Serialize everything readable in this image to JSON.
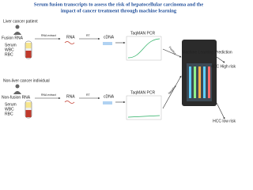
{
  "title": [
    "Serum fusion transcripts to assess the risk of hepatocellular carcinoma and the",
    "impact of cancer treatment through machine learning"
  ],
  "rows": [
    {
      "group": "Liver cancer patient",
      "rna_type": "Fusion RNA",
      "layers": [
        "Serum",
        "WBC",
        "RBC"
      ],
      "extract": "RNA extract",
      "rna": "RNA",
      "rt": "RT",
      "cdna": "cDNA",
      "pcr": "TaqMAN PCR",
      "result": "Positive",
      "risk": "HCC High risk"
    },
    {
      "group": "Non-liver cancer individual",
      "rna_type": "Non-fusion RNA",
      "layers": [
        "Serum",
        "WBC",
        "RBC"
      ],
      "extract": "RNA extract",
      "rna": "RNA",
      "rt": "RT",
      "cdna": "cDNA",
      "pcr": "TaqMAN PCR",
      "result": "Negative",
      "risk": "HCC low risk"
    }
  ],
  "prediction": "Machine Learning Prediction"
}
